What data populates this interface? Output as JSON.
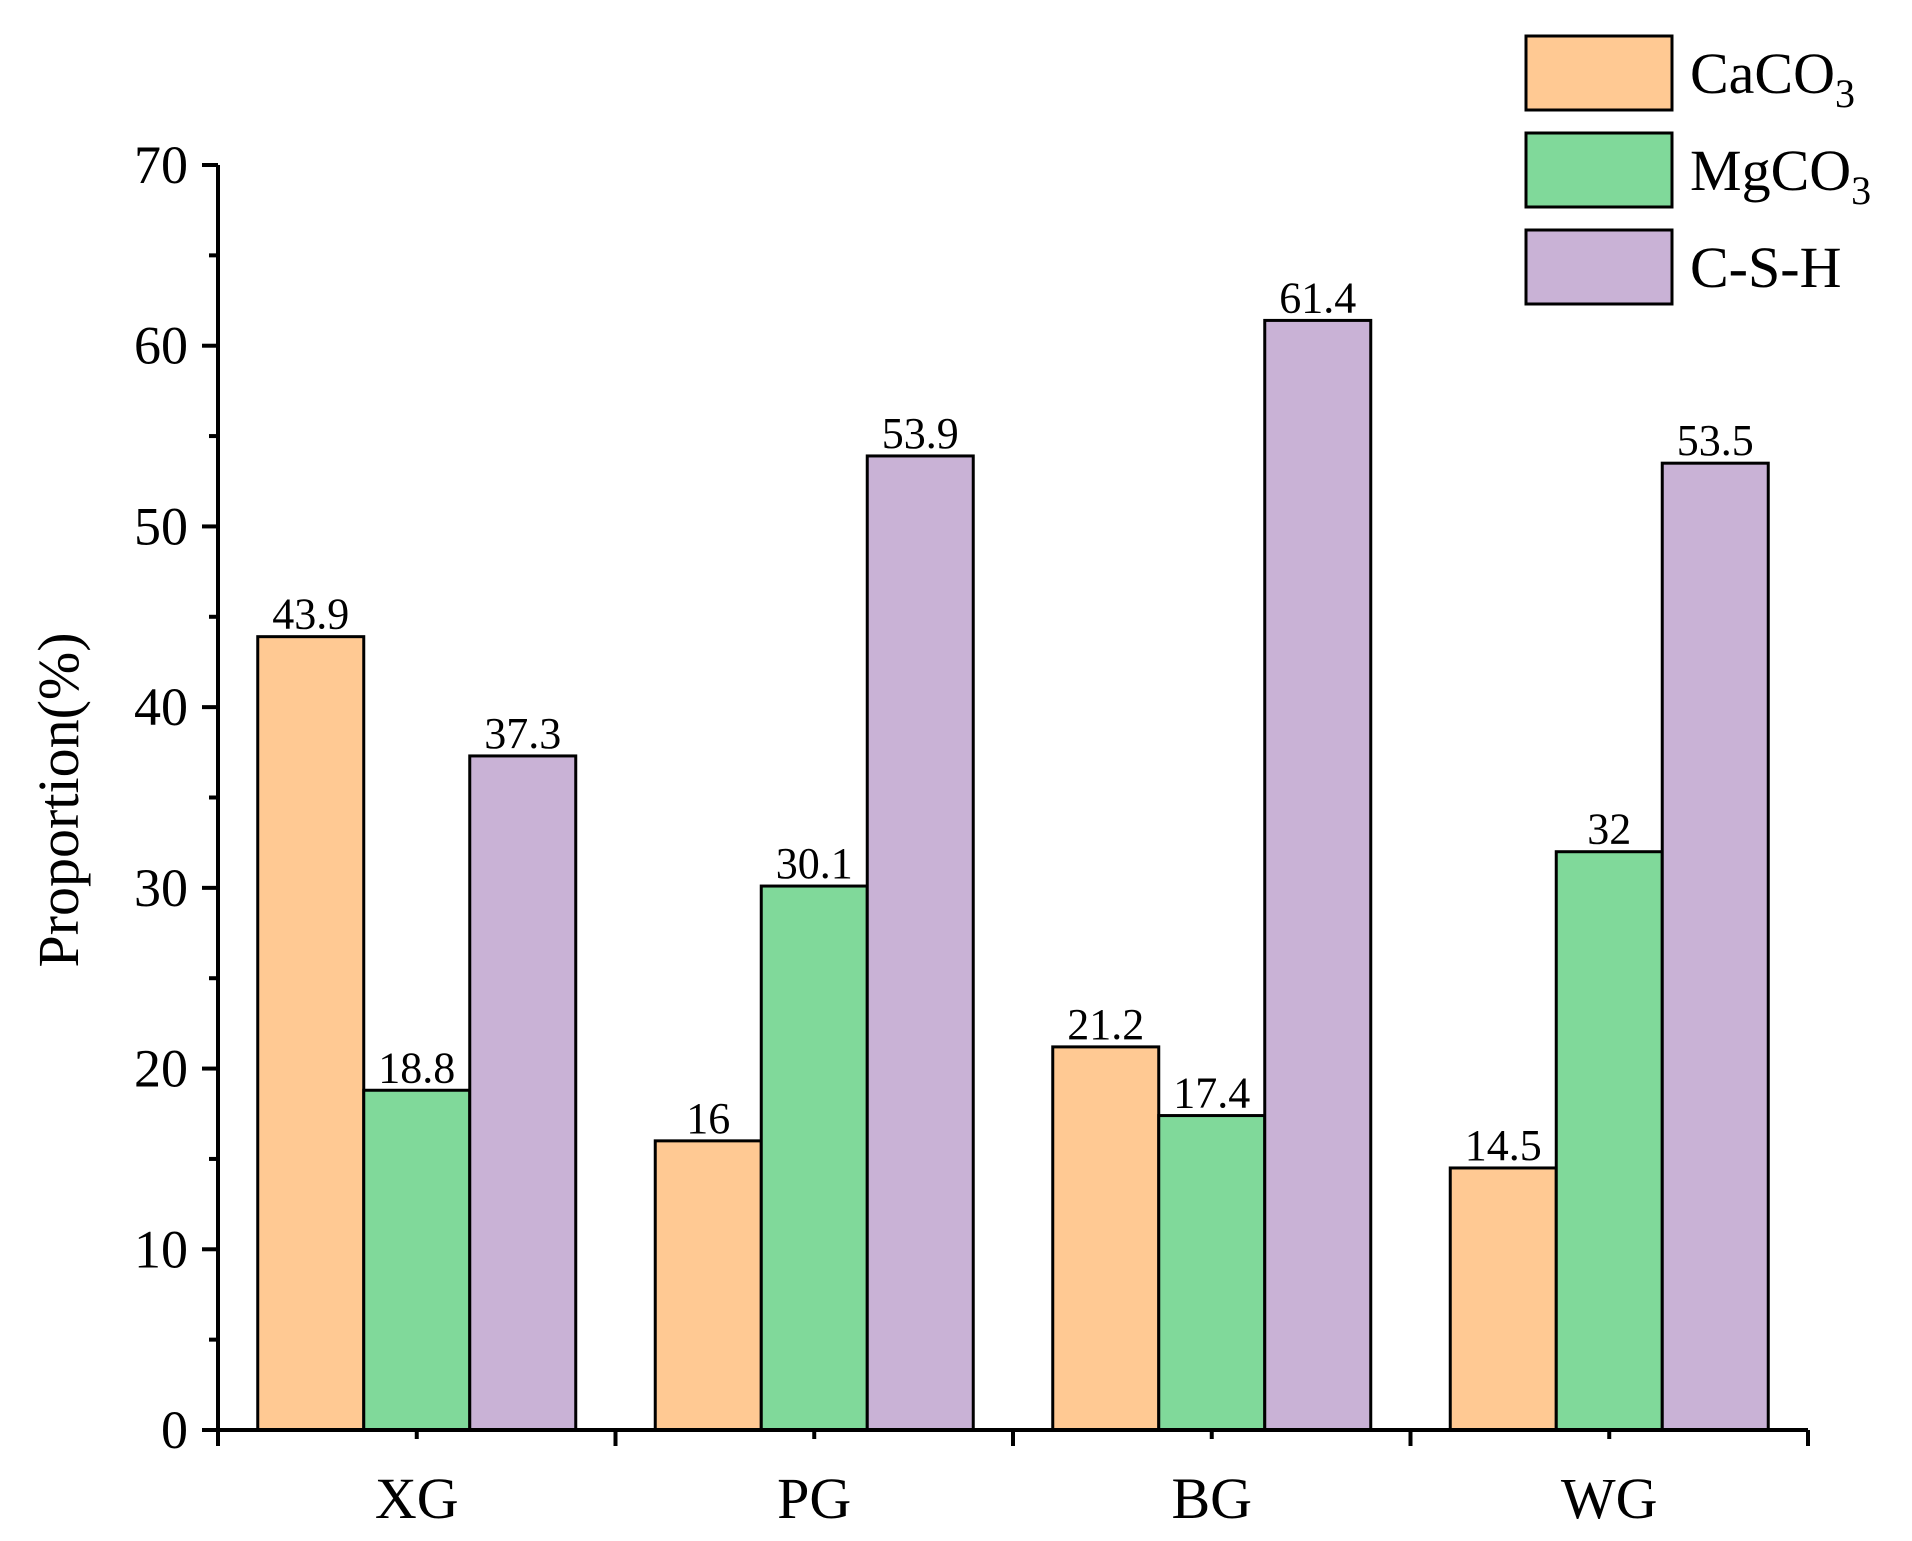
{
  "chart_data": {
    "type": "bar",
    "title": "",
    "xlabel": "",
    "ylabel": "Proportion(%)",
    "ylim": [
      0,
      70
    ],
    "yticks": [
      0,
      10,
      20,
      30,
      40,
      50,
      60,
      70
    ],
    "ytick_labels": [
      "0",
      "10",
      "20",
      "30",
      "40",
      "50",
      "60",
      "70"
    ],
    "y_minor_step": 5,
    "grid": false,
    "legend_position": "top-right",
    "categories": [
      "XG",
      "PG",
      "BG",
      "WG"
    ],
    "series": [
      {
        "name": "CaCO3",
        "legend_base": "CaCO",
        "legend_sub": "3",
        "color": "#FFC993",
        "values": [
          43.9,
          16,
          21.2,
          14.5
        ],
        "labels": [
          "43.9",
          "16",
          "21.2",
          "14.5"
        ]
      },
      {
        "name": "MgCO3",
        "legend_base": "MgCO",
        "legend_sub": "3",
        "color": "#80D99A",
        "values": [
          18.8,
          30.1,
          17.4,
          32
        ],
        "labels": [
          "18.8",
          "30.1",
          "17.4",
          "32"
        ]
      },
      {
        "name": "C-S-H",
        "legend_base": "C-S-H",
        "legend_sub": "",
        "color": "#C9B2D6",
        "values": [
          37.3,
          53.9,
          61.4,
          53.5
        ],
        "labels": [
          "37.3",
          "53.9",
          "61.4",
          "53.5"
        ]
      }
    ]
  }
}
